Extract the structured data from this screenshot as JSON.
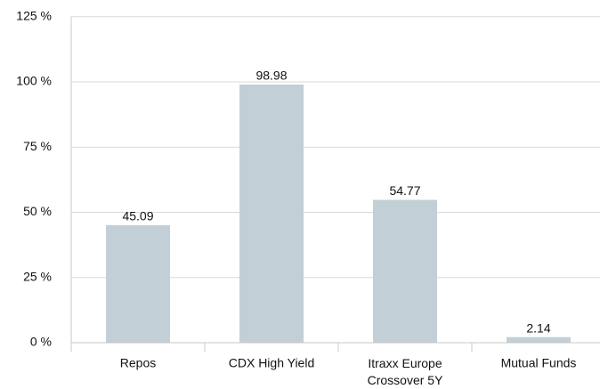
{
  "chart_data": {
    "type": "bar",
    "categories": [
      "Repos",
      "CDX High Yield",
      "Itraxx Europe Crossover 5Y",
      "Mutual Funds"
    ],
    "values": [
      45.09,
      98.98,
      54.77,
      2.14
    ],
    "color": "#c3cfd6",
    "ylim": [
      0,
      125
    ],
    "yticks": [
      {
        "value": 0,
        "label": "0 %"
      },
      {
        "value": 25,
        "label": "25 %"
      },
      {
        "value": 50,
        "label": "50 %"
      },
      {
        "value": 75,
        "label": "75 %"
      },
      {
        "value": 100,
        "label": "100 %"
      },
      {
        "value": 125,
        "label": "125 %"
      }
    ],
    "grid": true
  }
}
